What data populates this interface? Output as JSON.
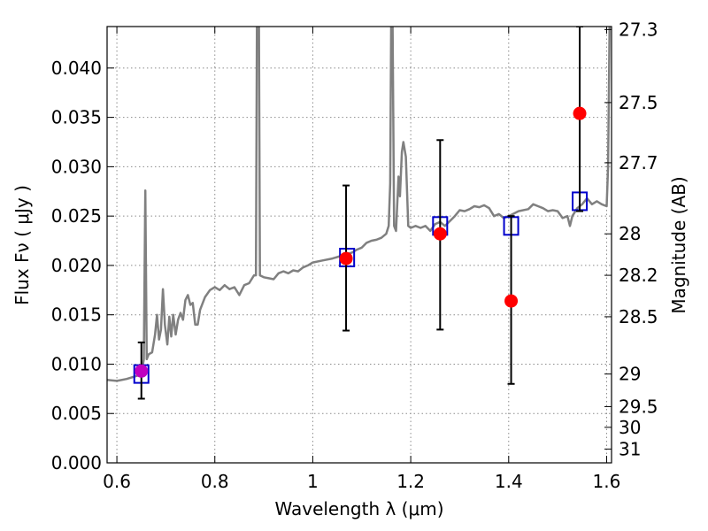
{
  "chart_data": {
    "type": "scatter",
    "xlabel": "Wavelength  λ (μm)",
    "ylabel": "Flux  Fν  ( μJy )",
    "ylabel_right": "Magnitude (AB)",
    "xlim": [
      0.58,
      1.61
    ],
    "ylim": [
      0.0,
      0.0442
    ],
    "grid": true,
    "x_ticks": [
      {
        "value": 0.6,
        "label": "0.6"
      },
      {
        "value": 0.8,
        "label": "0.8"
      },
      {
        "value": 1.0,
        "label": "1"
      },
      {
        "value": 1.2,
        "label": "1.2"
      },
      {
        "value": 1.4,
        "label": "1.4"
      },
      {
        "value": 1.6,
        "label": "1.6"
      }
    ],
    "y_ticks": [
      {
        "value": 0.0,
        "label": "0.000"
      },
      {
        "value": 0.005,
        "label": "0.005"
      },
      {
        "value": 0.01,
        "label": "0.010"
      },
      {
        "value": 0.015,
        "label": "0.015"
      },
      {
        "value": 0.02,
        "label": "0.020"
      },
      {
        "value": 0.025,
        "label": "0.025"
      },
      {
        "value": 0.03,
        "label": "0.030"
      },
      {
        "value": 0.035,
        "label": "0.035"
      },
      {
        "value": 0.04,
        "label": "0.040"
      }
    ],
    "mag_ticks": [
      {
        "flux": 0.0439,
        "label": "27.3"
      },
      {
        "flux": 0.0365,
        "label": "27.5"
      },
      {
        "flux": 0.0304,
        "label": "27.7"
      },
      {
        "flux": 0.0232,
        "label": "28"
      },
      {
        "flux": 0.019,
        "label": "28.2"
      },
      {
        "flux": 0.0148,
        "label": "28.5"
      },
      {
        "flux": 0.009,
        "label": "29"
      },
      {
        "flux": 0.0057,
        "label": "29.5"
      },
      {
        "flux": 0.0036,
        "label": "30"
      },
      {
        "flux": 0.0014,
        "label": "31"
      }
    ],
    "colors": {
      "model": "#808080",
      "observed": "#ff0000",
      "observed_overlap": "#c000c0",
      "model_band": "#0000cc",
      "errorbar": "#000000"
    },
    "model_spectrum": [
      [
        0.58,
        0.0084
      ],
      [
        0.6,
        0.0083
      ],
      [
        0.62,
        0.0085
      ],
      [
        0.64,
        0.0088
      ],
      [
        0.65,
        0.009
      ],
      [
        0.655,
        0.0105
      ],
      [
        0.658,
        0.0276
      ],
      [
        0.661,
        0.0105
      ],
      [
        0.665,
        0.011
      ],
      [
        0.672,
        0.0112
      ],
      [
        0.678,
        0.013
      ],
      [
        0.682,
        0.015
      ],
      [
        0.686,
        0.0125
      ],
      [
        0.69,
        0.0135
      ],
      [
        0.694,
        0.0176
      ],
      [
        0.698,
        0.014
      ],
      [
        0.703,
        0.012
      ],
      [
        0.707,
        0.0148
      ],
      [
        0.711,
        0.0128
      ],
      [
        0.715,
        0.015
      ],
      [
        0.72,
        0.013
      ],
      [
        0.725,
        0.0145
      ],
      [
        0.73,
        0.0152
      ],
      [
        0.735,
        0.0145
      ],
      [
        0.74,
        0.0165
      ],
      [
        0.745,
        0.017
      ],
      [
        0.75,
        0.016
      ],
      [
        0.755,
        0.0162
      ],
      [
        0.76,
        0.014
      ],
      [
        0.765,
        0.014
      ],
      [
        0.77,
        0.0155
      ],
      [
        0.78,
        0.0168
      ],
      [
        0.79,
        0.0175
      ],
      [
        0.8,
        0.0178
      ],
      [
        0.81,
        0.0175
      ],
      [
        0.82,
        0.018
      ],
      [
        0.83,
        0.0176
      ],
      [
        0.84,
        0.0178
      ],
      [
        0.85,
        0.017
      ],
      [
        0.86,
        0.018
      ],
      [
        0.87,
        0.0182
      ],
      [
        0.88,
        0.019
      ],
      [
        0.884,
        0.019
      ],
      [
        0.886,
        0.0444
      ],
      [
        0.89,
        0.0444
      ],
      [
        0.892,
        0.019
      ],
      [
        0.9,
        0.0188
      ],
      [
        0.91,
        0.0187
      ],
      [
        0.92,
        0.0186
      ],
      [
        0.93,
        0.0192
      ],
      [
        0.94,
        0.0194
      ],
      [
        0.95,
        0.0192
      ],
      [
        0.96,
        0.0195
      ],
      [
        0.97,
        0.0194
      ],
      [
        0.98,
        0.0198
      ],
      [
        0.99,
        0.02
      ],
      [
        1.0,
        0.0203
      ],
      [
        1.02,
        0.0205
      ],
      [
        1.04,
        0.0207
      ],
      [
        1.06,
        0.021
      ],
      [
        1.08,
        0.0213
      ],
      [
        1.09,
        0.0216
      ],
      [
        1.1,
        0.0218
      ],
      [
        1.11,
        0.0223
      ],
      [
        1.12,
        0.0225
      ],
      [
        1.13,
        0.0226
      ],
      [
        1.14,
        0.0228
      ],
      [
        1.15,
        0.0232
      ],
      [
        1.155,
        0.024
      ],
      [
        1.158,
        0.0283
      ],
      [
        1.16,
        0.0444
      ],
      [
        1.163,
        0.0444
      ],
      [
        1.166,
        0.024
      ],
      [
        1.17,
        0.0235
      ],
      [
        1.175,
        0.029
      ],
      [
        1.178,
        0.027
      ],
      [
        1.182,
        0.0315
      ],
      [
        1.185,
        0.0325
      ],
      [
        1.19,
        0.031
      ],
      [
        1.195,
        0.024
      ],
      [
        1.2,
        0.0238
      ],
      [
        1.21,
        0.024
      ],
      [
        1.22,
        0.0238
      ],
      [
        1.23,
        0.024
      ],
      [
        1.24,
        0.0235
      ],
      [
        1.25,
        0.0242
      ],
      [
        1.26,
        0.0244
      ],
      [
        1.27,
        0.024
      ],
      [
        1.28,
        0.0245
      ],
      [
        1.29,
        0.025
      ],
      [
        1.3,
        0.0256
      ],
      [
        1.31,
        0.0255
      ],
      [
        1.32,
        0.0257
      ],
      [
        1.33,
        0.026
      ],
      [
        1.34,
        0.0259
      ],
      [
        1.35,
        0.0261
      ],
      [
        1.36,
        0.0258
      ],
      [
        1.37,
        0.025
      ],
      [
        1.38,
        0.0252
      ],
      [
        1.39,
        0.0248
      ],
      [
        1.4,
        0.025
      ],
      [
        1.42,
        0.0255
      ],
      [
        1.44,
        0.0257
      ],
      [
        1.45,
        0.0262
      ],
      [
        1.46,
        0.026
      ],
      [
        1.47,
        0.0258
      ],
      [
        1.48,
        0.0255
      ],
      [
        1.49,
        0.0256
      ],
      [
        1.5,
        0.0255
      ],
      [
        1.51,
        0.0248
      ],
      [
        1.52,
        0.025
      ],
      [
        1.525,
        0.024
      ],
      [
        1.53,
        0.025
      ],
      [
        1.54,
        0.0258
      ],
      [
        1.55,
        0.0262
      ],
      [
        1.56,
        0.0268
      ],
      [
        1.57,
        0.0262
      ],
      [
        1.58,
        0.0265
      ],
      [
        1.59,
        0.0262
      ],
      [
        1.6,
        0.026
      ],
      [
        1.603,
        0.03
      ],
      [
        1.606,
        0.0444
      ]
    ],
    "model_bands": [
      {
        "x": 0.65,
        "y": 0.009
      },
      {
        "x": 1.07,
        "y": 0.0208
      },
      {
        "x": 1.26,
        "y": 0.024
      },
      {
        "x": 1.405,
        "y": 0.024
      },
      {
        "x": 1.545,
        "y": 0.0265
      }
    ],
    "observed": [
      {
        "x": 0.65,
        "y": 0.0093,
        "yerr_low": 0.0065,
        "yerr_high": 0.0122
      },
      {
        "x": 1.068,
        "y": 0.0207,
        "yerr_low": 0.0134,
        "yerr_high": 0.0281
      },
      {
        "x": 1.26,
        "y": 0.0232,
        "yerr_low": 0.0135,
        "yerr_high": 0.0327
      },
      {
        "x": 1.405,
        "y": 0.0164,
        "yerr_low": 0.008,
        "yerr_high": 0.025
      },
      {
        "x": 1.545,
        "y": 0.0354,
        "yerr_low": 0.0255,
        "yerr_high": 0.0442
      }
    ]
  }
}
